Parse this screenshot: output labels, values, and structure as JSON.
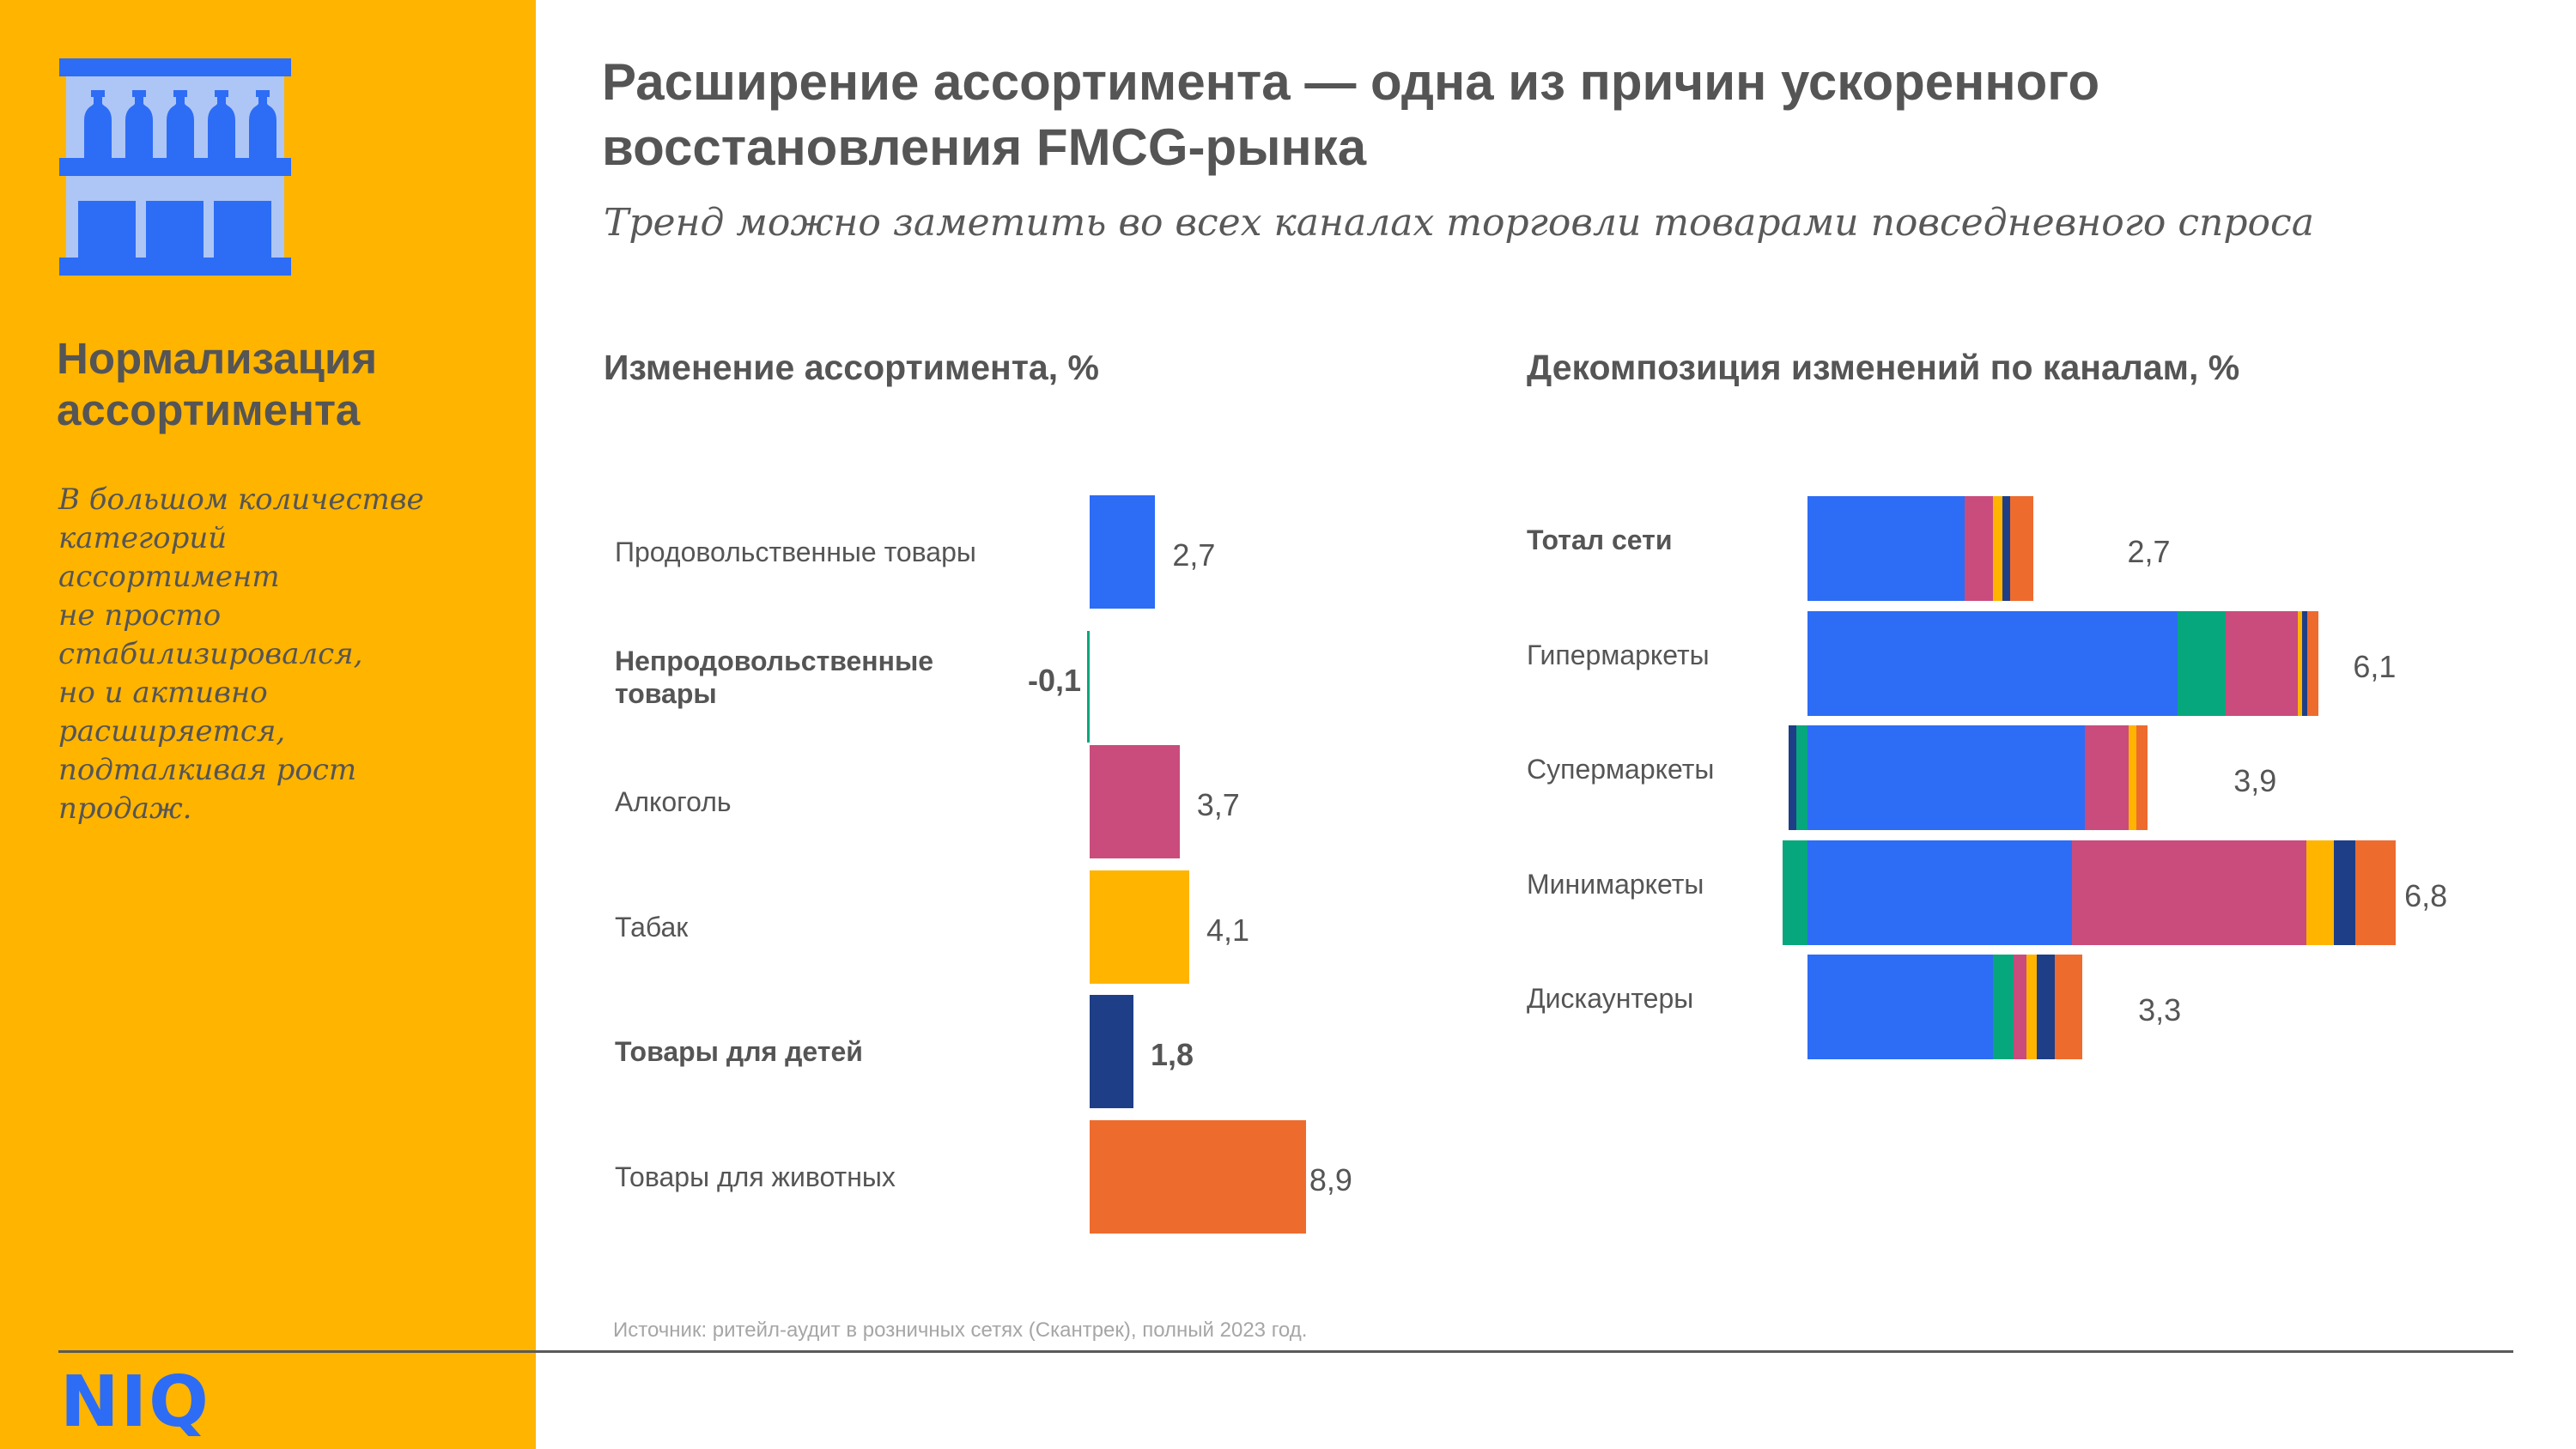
{
  "sidebar": {
    "icon": "shelf-with-bottles-icon",
    "title": "Нормализация ассортимента",
    "text": "В большом количестве\nкатегорий\nассортимент\nне просто\nстабилизировался,\nно и активно\nрасширяется,\nподталкивая рост\nпродаж.",
    "logo": "NIQ"
  },
  "header": {
    "title": "Расширение ассортимента — одна из причин ускоренного восстановления FMCG-рынка",
    "subtitle": "Тренд можно заметить во всех каналах торговли товарами повседневного спроса"
  },
  "colors": {
    "sidebar_bg": "#FFB400",
    "brand_blue": "#2D6CF5",
    "icon_light_blue": "#AEC6F5",
    "text_gray": "#555555"
  },
  "source": "Источник: ритейл-аудит в розничных сетях (Скантрек), полный 2023 год.",
  "chart_data": [
    {
      "type": "bar",
      "orientation": "horizontal",
      "title": "Изменение ассортимента, %",
      "categories": [
        "Продовольственные товары",
        "Непродовольственные товары",
        "Алкоголь",
        "Табак",
        "Товары для детей",
        "Товары для животных"
      ],
      "values": [
        2.7,
        -0.1,
        3.7,
        4.1,
        1.8,
        8.9
      ],
      "value_labels": [
        "2,7",
        "-0,1",
        "3,7",
        "4,1",
        "1,8",
        "8,9"
      ],
      "bold_categories": [
        "Непродовольственные товары",
        "Товары для детей"
      ],
      "colors": [
        "#2D6CF5",
        "#06A77D",
        "#C94C7C",
        "#FFB400",
        "#1E3F87",
        "#EE6B2E"
      ],
      "xlabel": "",
      "ylabel": "",
      "grid": false,
      "legend": "none"
    },
    {
      "type": "bar",
      "orientation": "horizontal",
      "stacked": true,
      "title": "Декомпозиция изменений по каналам, %",
      "categories": [
        "Тотал сети",
        "Гипермаркеты",
        "Супермаркеты",
        "Минимаркеты",
        "Дискаунтеры"
      ],
      "bold_categories": [
        "Тотал сети"
      ],
      "totals": [
        2.7,
        6.1,
        3.9,
        6.8,
        3.3
      ],
      "total_labels": [
        "2,7",
        "6,1",
        "3,9",
        "6,8",
        "3,3"
      ],
      "series": [
        {
          "name": "Продовольственные товары",
          "color": "#2D6CF5",
          "values": [
            1.87,
            4.42,
            3.31,
            3.16,
            2.21
          ]
        },
        {
          "name": "Непродовольственные товары",
          "color": "#06A77D",
          "values": [
            0.0,
            0.57,
            -0.13,
            -0.3,
            0.25
          ]
        },
        {
          "name": "Алкоголь",
          "color": "#C94C7C",
          "values": [
            0.34,
            0.86,
            0.52,
            2.79,
            0.15
          ]
        },
        {
          "name": "Табак",
          "color": "#FFB400",
          "values": [
            0.12,
            0.05,
            0.09,
            0.33,
            0.13
          ]
        },
        {
          "name": "Товары для детей",
          "color": "#1E3F87",
          "values": [
            0.09,
            0.06,
            -0.1,
            0.26,
            0.21
          ]
        },
        {
          "name": "Товары для животных",
          "color": "#EE6B2E",
          "values": [
            0.27,
            0.14,
            0.14,
            0.48,
            0.33
          ]
        }
      ],
      "xlabel": "",
      "ylabel": "",
      "grid": false,
      "legend": "none"
    }
  ]
}
